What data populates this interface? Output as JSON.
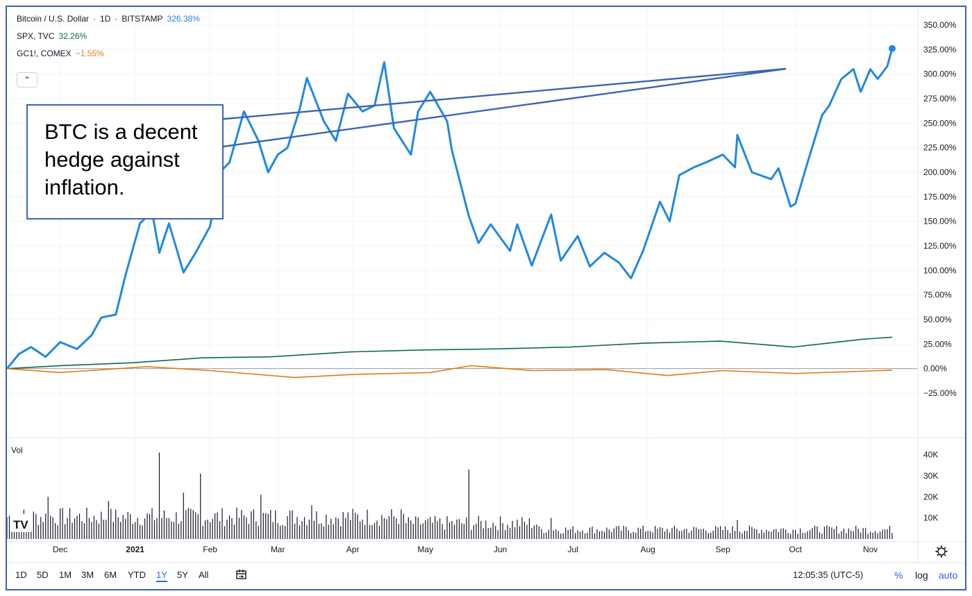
{
  "legend": {
    "main": {
      "symbol": "Bitcoin / U.S. Dollar",
      "interval": "1D",
      "exchange": "BITSTAMP",
      "change": "326.38%",
      "color": "#1e88e5"
    },
    "series": [
      {
        "symbol": "SPX, TVC",
        "change": "32.26%",
        "color": "#0b6b4a"
      },
      {
        "symbol": "GC1!, COMEX",
        "change": "−1.55%",
        "color": "#e07b10"
      }
    ],
    "collapse_icon": "chevron-up-icon"
  },
  "annotation": {
    "lines": [
      "BTC is a decent",
      "hedge against",
      "inflation."
    ]
  },
  "volume_label": "Vol",
  "toolbar": {
    "ranges": [
      "1D",
      "5D",
      "1M",
      "3M",
      "6M",
      "YTD",
      "1Y",
      "5Y",
      "All"
    ],
    "active_range": "1Y",
    "compare_icon": "calendar-range-icon",
    "time": "12:05:35 (UTC-5)",
    "percent": "%",
    "log": "log",
    "auto": "auto",
    "settings_icon": "gear-icon",
    "logo_icon": "tradingview-logo-icon"
  },
  "chart_data": [
    {
      "type": "line",
      "x_tick_labels": [
        "Dec",
        "2021",
        "Feb",
        "Mar",
        "Apr",
        "May",
        "Jun",
        "Jul",
        "Aug",
        "Sep",
        "Oct",
        "Nov"
      ],
      "x_range": [
        "2020-11-09",
        "2021-11-10"
      ],
      "y_tick_labels": [
        "350.00%",
        "325.00%",
        "300.00%",
        "275.00%",
        "250.00%",
        "225.00%",
        "200.00%",
        "175.00%",
        "150.00%",
        "125.00%",
        "100.00%",
        "75.00%",
        "50.00%",
        "25.00%",
        "0.00%",
        "−25.00%"
      ],
      "ylim": [
        -38,
        358
      ],
      "grid": true,
      "series": [
        {
          "name": "Bitcoin / U.S. Dollar",
          "color": "#1e88e5",
          "x": [
            "2020-11-09",
            "2020-11-14",
            "2020-11-19",
            "2020-11-25",
            "2020-12-01",
            "2020-12-08",
            "2020-12-14",
            "2020-12-18",
            "2020-12-24",
            "2020-12-28",
            "2021-01-03",
            "2021-01-08",
            "2021-01-11",
            "2021-01-15",
            "2021-01-21",
            "2021-01-26",
            "2021-02-01",
            "2021-02-05",
            "2021-02-09",
            "2021-02-15",
            "2021-02-21",
            "2021-02-25",
            "2021-03-01",
            "2021-03-05",
            "2021-03-10",
            "2021-03-13",
            "2021-03-20",
            "2021-03-25",
            "2021-03-30",
            "2021-04-05",
            "2021-04-10",
            "2021-04-14",
            "2021-04-18",
            "2021-04-25",
            "2021-04-28",
            "2021-05-03",
            "2021-05-10",
            "2021-05-12",
            "2021-05-19",
            "2021-05-23",
            "2021-05-28",
            "2021-06-05",
            "2021-06-08",
            "2021-06-14",
            "2021-06-22",
            "2021-06-26",
            "2021-07-03",
            "2021-07-08",
            "2021-07-14",
            "2021-07-20",
            "2021-07-25",
            "2021-07-30",
            "2021-08-06",
            "2021-08-10",
            "2021-08-14",
            "2021-08-20",
            "2021-08-25",
            "2021-09-01",
            "2021-09-06",
            "2021-09-07",
            "2021-09-13",
            "2021-09-21",
            "2021-09-24",
            "2021-09-29",
            "2021-10-01",
            "2021-10-06",
            "2021-10-12",
            "2021-10-15",
            "2021-10-20",
            "2021-10-25",
            "2021-10-28",
            "2021-11-01",
            "2021-11-04",
            "2021-11-08",
            "2021-11-10"
          ],
          "values": [
            0,
            15,
            22,
            12,
            27,
            20,
            34,
            52,
            55,
            95,
            148,
            160,
            118,
            148,
            98,
            118,
            145,
            200,
            210,
            262,
            232,
            200,
            218,
            225,
            264,
            296,
            252,
            232,
            280,
            262,
            268,
            312,
            245,
            218,
            262,
            282,
            252,
            222,
            155,
            128,
            147,
            120,
            147,
            105,
            157,
            110,
            135,
            104,
            118,
            108,
            92,
            120,
            170,
            150,
            197,
            205,
            210,
            218,
            205,
            238,
            200,
            193,
            204,
            165,
            168,
            210,
            258,
            268,
            295,
            305,
            282,
            305,
            295,
            308,
            326
          ]
        },
        {
          "name": "SPX, TVC",
          "color": "#0b6b4a",
          "x": [
            "2020-11-09",
            "2020-12-01",
            "2020-12-31",
            "2021-01-29",
            "2021-02-26",
            "2021-03-31",
            "2021-04-30",
            "2021-05-28",
            "2021-06-30",
            "2021-07-31",
            "2021-08-31",
            "2021-09-30",
            "2021-10-29",
            "2021-11-10"
          ],
          "values": [
            0,
            3,
            6,
            11,
            12,
            17,
            19,
            20,
            22,
            26,
            28,
            22,
            30,
            32
          ]
        },
        {
          "name": "GC1!, COMEX",
          "color": "#e07b10",
          "x": [
            "2020-11-09",
            "2020-12-01",
            "2021-01-06",
            "2021-02-01",
            "2021-03-08",
            "2021-04-01",
            "2021-05-03",
            "2021-05-20",
            "2021-06-14",
            "2021-07-15",
            "2021-08-09",
            "2021-09-01",
            "2021-10-01",
            "2021-11-10"
          ],
          "values": [
            0,
            -4,
            2,
            -2,
            -9,
            -6,
            -4,
            3,
            -2,
            -1,
            -7,
            -2,
            -5,
            -1.55
          ]
        }
      ]
    },
    {
      "type": "bar",
      "title": "Vol",
      "y_tick_labels": [
        "40K",
        "30K",
        "20K",
        "10K"
      ],
      "ylim": [
        0,
        41500
      ],
      "spikes": [
        {
          "x": "2020-11-26",
          "value": 20000
        },
        {
          "x": "2020-12-21",
          "value": 18000
        },
        {
          "x": "2021-01-11",
          "value": 41000
        },
        {
          "x": "2021-01-21",
          "value": 22000
        },
        {
          "x": "2021-01-28",
          "value": 31000
        },
        {
          "x": "2021-02-22",
          "value": 21000
        },
        {
          "x": "2021-03-15",
          "value": 16000
        },
        {
          "x": "2021-05-19",
          "value": 33000
        },
        {
          "x": "2021-06-22",
          "value": 10000
        },
        {
          "x": "2021-09-07",
          "value": 9000
        }
      ]
    }
  ]
}
